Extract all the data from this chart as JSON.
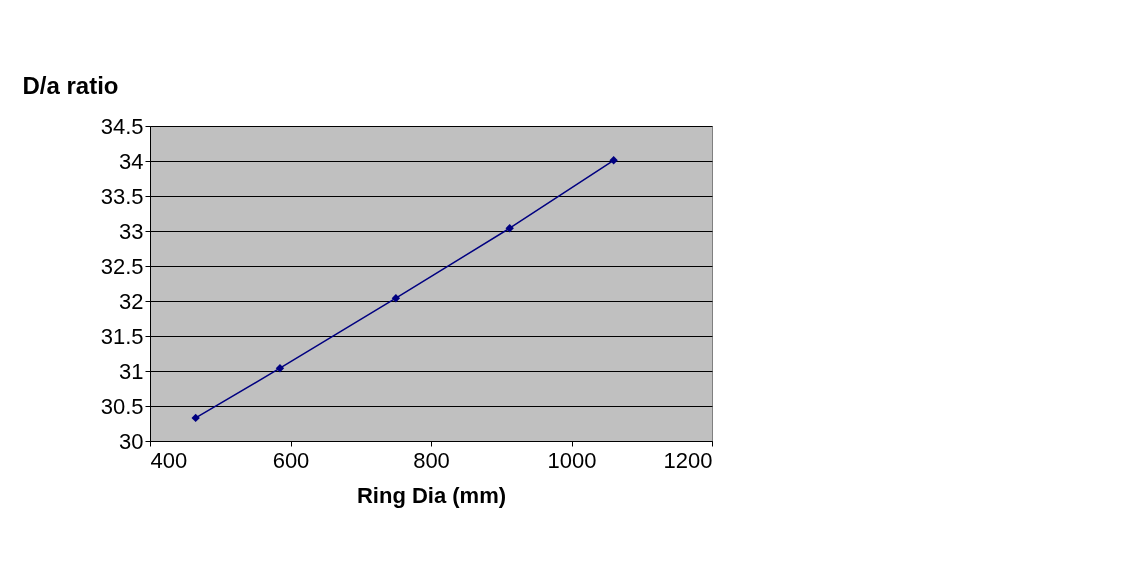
{
  "chart_data": {
    "type": "line",
    "ylabel": "D/a ratio",
    "xlabel": "Ring Dia (mm)",
    "x": [
      465,
      585,
      750,
      912,
      1060
    ],
    "series": [
      {
        "color": "#000080",
        "values": [
          30.33,
          31.04,
          32.04,
          33.04,
          34.01
        ]
      }
    ],
    "xlim": [
      400,
      1200
    ],
    "xticks": [
      400,
      600,
      800,
      1000,
      1200
    ],
    "ylim": [
      30,
      34.5
    ],
    "yticks": [
      30,
      30.5,
      31,
      31.5,
      32,
      32.5,
      33,
      33.5,
      34,
      34.5
    ],
    "grid": "y",
    "marker": "diamond",
    "line_style": "solid"
  }
}
